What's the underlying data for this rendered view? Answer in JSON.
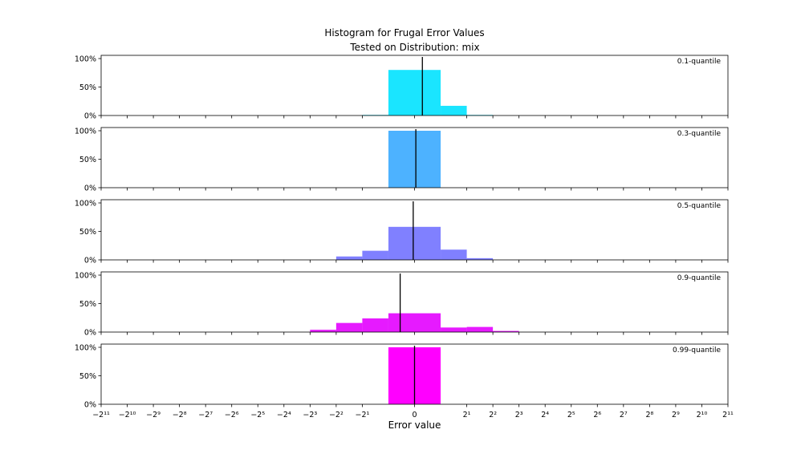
{
  "chart_data": {
    "type": "bar",
    "title": "Histogram for Frugal Error Values",
    "subtitle": "Tested on Distribution: mix",
    "xlabel": "Error value",
    "x_scale": "symlog base 2",
    "x_tick_labels": [
      "−2¹¹",
      "−2¹⁰",
      "−2⁹",
      "−2⁸",
      "−2⁷",
      "−2⁶",
      "−2⁵",
      "−2⁴",
      "−2³",
      "−2²",
      "−2¹",
      "0",
      "2¹",
      "2²",
      "2³",
      "2⁴",
      "2⁵",
      "2⁶",
      "2⁷",
      "2⁸",
      "2⁹",
      "2¹⁰",
      "2¹¹"
    ],
    "y_tick_labels": [
      "0%",
      "50%",
      "100%"
    ],
    "ylim": [
      0,
      100
    ],
    "grid": false,
    "bin_edges": [
      "−2³",
      "−2²",
      "−2¹",
      "−1",
      "1",
      "2¹",
      "2²",
      "2³"
    ],
    "panels": [
      {
        "label": "0.1-quantile",
        "color": "#1ae5ff",
        "values": [
          0,
          0,
          1,
          80,
          17,
          1,
          0
        ],
        "marker": 0.3
      },
      {
        "label": "0.3-quantile",
        "color": "#4db2ff",
        "values": [
          0,
          0,
          0,
          100,
          0,
          0,
          0
        ],
        "marker": 0.05
      },
      {
        "label": "0.5-quantile",
        "color": "#8080ff",
        "values": [
          0,
          6,
          16,
          58,
          18,
          3,
          0
        ],
        "marker": -0.05
      },
      {
        "label": "0.9-quantile",
        "color": "#e61aff",
        "values": [
          4,
          16,
          24,
          33,
          8,
          9,
          2
        ],
        "marker": -0.55
      },
      {
        "label": "0.99-quantile",
        "color": "#ff00ff",
        "values": [
          0,
          0,
          0,
          100,
          0,
          0,
          0
        ],
        "marker": 0
      }
    ]
  }
}
